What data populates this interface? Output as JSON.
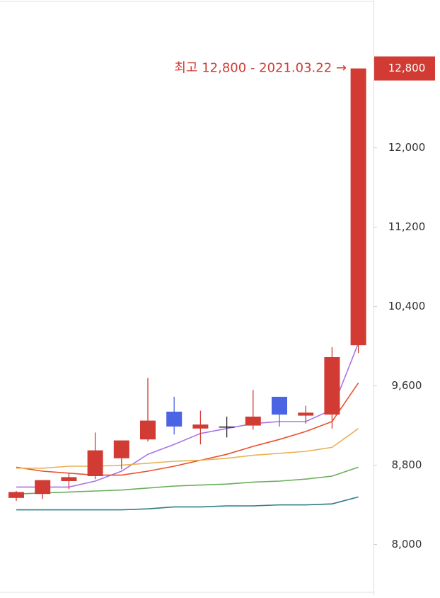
{
  "chart_data": {
    "type": "candlestick",
    "open": [
      8470,
      8510,
      8640,
      8690,
      8870,
      9060,
      9340,
      9170,
      9190,
      9200,
      9490,
      9300,
      9310,
      10010
    ],
    "high": [
      8540,
      8650,
      8720,
      9130,
      9050,
      9680,
      9490,
      9350,
      9290,
      9560,
      9490,
      9400,
      9990,
      12800
    ],
    "low": [
      8440,
      8460,
      8560,
      8660,
      8760,
      9040,
      9110,
      9010,
      9080,
      9160,
      9190,
      9220,
      9170,
      9930
    ],
    "close": [
      8530,
      8650,
      8680,
      8950,
      9050,
      9250,
      9190,
      9210,
      9190,
      9290,
      9310,
      9330,
      9890,
      12800
    ],
    "up_color": "#d13b33",
    "down_color": "#4a64e4",
    "flat_color": "#222222",
    "series": [
      {
        "color": "#a874e8",
        "values": [
          8580,
          8580,
          8580,
          8640,
          8740,
          8910,
          9010,
          9120,
          9170,
          9220,
          9240,
          9240,
          9360,
          10030
        ]
      },
      {
        "color": "#e8502c",
        "values": [
          8780,
          8740,
          8720,
          8700,
          8700,
          8740,
          8790,
          8850,
          8910,
          8990,
          9060,
          9140,
          9240,
          9630
        ]
      },
      {
        "color": "#e9b254",
        "values": [
          8770,
          8770,
          8790,
          8790,
          8800,
          8820,
          8840,
          8850,
          8870,
          8900,
          8920,
          8940,
          8980,
          9170
        ]
      },
      {
        "color": "#6aae5c",
        "values": [
          8510,
          8520,
          8530,
          8540,
          8550,
          8570,
          8590,
          8600,
          8610,
          8630,
          8640,
          8660,
          8690,
          8780
        ]
      },
      {
        "color": "#2b7c86",
        "values": [
          8350,
          8350,
          8350,
          8350,
          8350,
          8360,
          8380,
          8380,
          8390,
          8390,
          8400,
          8400,
          8410,
          8480
        ]
      }
    ],
    "ylim": [
      7490,
      13490
    ],
    "yticks": [
      {
        "value": 8000,
        "label": "8,000"
      },
      {
        "value": 8800,
        "label": "8,800"
      },
      {
        "value": 9600,
        "label": "9,600"
      },
      {
        "value": 10400,
        "label": "10,400"
      },
      {
        "value": 11200,
        "label": "11,200"
      },
      {
        "value": 12000,
        "label": "12,000"
      }
    ],
    "price_marker": {
      "value": 12800,
      "label": "12,800"
    },
    "annotation": "최고 12,800 - 2021.03.22 →"
  }
}
